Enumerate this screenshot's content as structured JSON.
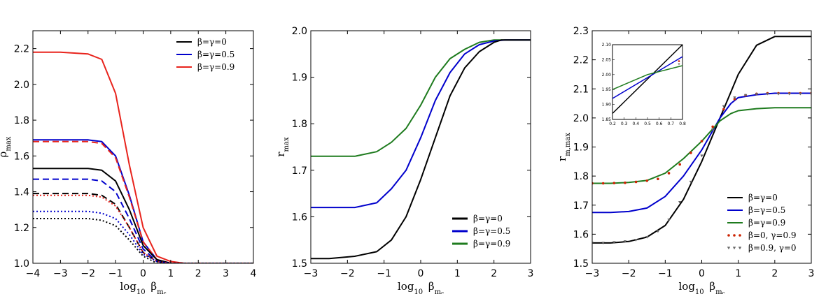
{
  "chart_data": [
    {
      "type": "line",
      "xlabel": "log₁₀ β_mc",
      "ylabel": "ρ_max",
      "xlim": [
        -4,
        4
      ],
      "ylim": [
        1.0,
        2.3
      ],
      "xticks": [
        -4,
        -3,
        -2,
        -1,
        0,
        1,
        2,
        3,
        4
      ],
      "yticks": [
        1.0,
        1.2,
        1.4,
        1.6,
        1.8,
        2.0,
        2.2
      ],
      "legend": {
        "placement": "top-right",
        "entries": [
          {
            "label": "β=γ=0",
            "color": "#000000"
          },
          {
            "label": "β=γ=0.5",
            "color": "#0000cc"
          },
          {
            "label": "β=γ=0.9",
            "color": "#e8231c"
          }
        ]
      },
      "series": [
        {
          "color": "#e8231c",
          "style": "solid",
          "x": [
            -4,
            -3,
            -2,
            -1.5,
            -1,
            -0.5,
            0,
            0.5,
            1,
            1.5,
            2,
            4
          ],
          "y": [
            2.18,
            2.18,
            2.17,
            2.14,
            1.95,
            1.55,
            1.2,
            1.04,
            1.01,
            1.0,
            1.0,
            1.0
          ]
        },
        {
          "color": "#0000cc",
          "style": "solid",
          "x": [
            -4,
            -3,
            -2,
            -1.5,
            -1,
            -0.5,
            0,
            0.5,
            1,
            1.5,
            4
          ],
          "y": [
            1.69,
            1.69,
            1.69,
            1.68,
            1.6,
            1.38,
            1.12,
            1.02,
            1.0,
            1.0,
            1.0
          ]
        },
        {
          "color": "#e8231c",
          "style": "dashed",
          "x": [
            -4,
            -3,
            -2,
            -1.5,
            -1,
            -0.5,
            0,
            0.5,
            1,
            1.5,
            4
          ],
          "y": [
            1.68,
            1.68,
            1.68,
            1.67,
            1.59,
            1.37,
            1.12,
            1.02,
            1.0,
            1.0,
            1.0
          ]
        },
        {
          "color": "#000000",
          "style": "solid",
          "x": [
            -4,
            -3,
            -2,
            -1.5,
            -1,
            -0.5,
            0,
            0.5,
            1,
            1.5,
            4
          ],
          "y": [
            1.53,
            1.53,
            1.53,
            1.52,
            1.46,
            1.3,
            1.1,
            1.02,
            1.0,
            1.0,
            1.0
          ]
        },
        {
          "color": "#0000cc",
          "style": "dashed",
          "x": [
            -4,
            -3,
            -2,
            -1.5,
            -1,
            -0.5,
            0,
            0.5,
            1,
            1.5,
            4
          ],
          "y": [
            1.47,
            1.47,
            1.47,
            1.46,
            1.4,
            1.25,
            1.08,
            1.01,
            1.0,
            1.0,
            1.0
          ]
        },
        {
          "color": "#000000",
          "style": "dashed",
          "x": [
            -4,
            -3,
            -2,
            -1.5,
            -1,
            -0.5,
            0,
            0.5,
            1,
            1.5,
            4
          ],
          "y": [
            1.39,
            1.39,
            1.39,
            1.38,
            1.33,
            1.2,
            1.06,
            1.01,
            1.0,
            1.0,
            1.0
          ]
        },
        {
          "color": "#e8231c",
          "style": "dotted",
          "x": [
            -4,
            -3,
            -2,
            -1.5,
            -1,
            -0.5,
            0,
            0.5,
            1,
            1.5,
            4
          ],
          "y": [
            1.38,
            1.38,
            1.38,
            1.37,
            1.32,
            1.2,
            1.06,
            1.01,
            1.0,
            1.0,
            1.0
          ]
        },
        {
          "color": "#0000cc",
          "style": "dotted",
          "x": [
            -4,
            -3,
            -2,
            -1.5,
            -1,
            -0.5,
            0,
            0.5,
            1,
            1.5,
            4
          ],
          "y": [
            1.29,
            1.29,
            1.29,
            1.28,
            1.25,
            1.16,
            1.05,
            1.01,
            1.0,
            1.0,
            1.0
          ]
        },
        {
          "color": "#000000",
          "style": "dotted",
          "x": [
            -4,
            -3,
            -2,
            -1.5,
            -1,
            -0.5,
            0,
            0.5,
            1,
            1.5,
            4
          ],
          "y": [
            1.25,
            1.25,
            1.25,
            1.24,
            1.21,
            1.13,
            1.04,
            1.0,
            1.0,
            1.0,
            1.0
          ]
        }
      ]
    },
    {
      "type": "line",
      "xlabel": "log₁₀ β_mc",
      "ylabel": "r_max",
      "xlim": [
        -3,
        3
      ],
      "ylim": [
        1.5,
        2.0
      ],
      "xticks": [
        -3,
        -2,
        -1,
        0,
        1,
        2,
        3
      ],
      "yticks": [
        1.5,
        1.6,
        1.7,
        1.8,
        1.9,
        2.0
      ],
      "legend": {
        "placement": "bottom-right",
        "entries": [
          {
            "label": "β=γ=0",
            "color": "#000000"
          },
          {
            "label": "β=γ=0.5",
            "color": "#0000cc"
          },
          {
            "label": "β=γ=0.9",
            "color": "#1e7b1e"
          }
        ]
      },
      "series": [
        {
          "color": "#1e7b1e",
          "x": [
            -3,
            -2.5,
            -1.8,
            -1.2,
            -0.8,
            -0.4,
            0,
            0.4,
            0.8,
            1.2,
            1.6,
            2,
            2.5,
            3
          ],
          "y": [
            1.73,
            1.73,
            1.73,
            1.74,
            1.76,
            1.79,
            1.84,
            1.9,
            1.94,
            1.96,
            1.975,
            1.98,
            1.98,
            1.98
          ]
        },
        {
          "color": "#0000cc",
          "x": [
            -3,
            -2.5,
            -1.8,
            -1.2,
            -0.8,
            -0.4,
            0,
            0.4,
            0.8,
            1.2,
            1.6,
            2,
            2.3,
            3
          ],
          "y": [
            1.62,
            1.62,
            1.62,
            1.63,
            1.66,
            1.7,
            1.77,
            1.85,
            1.91,
            1.95,
            1.97,
            1.978,
            1.98,
            1.98
          ]
        },
        {
          "color": "#000000",
          "x": [
            -3,
            -2.5,
            -1.8,
            -1.2,
            -0.8,
            -0.4,
            0,
            0.4,
            0.8,
            1.2,
            1.6,
            2,
            2.2,
            3
          ],
          "y": [
            1.51,
            1.51,
            1.515,
            1.525,
            1.55,
            1.6,
            1.68,
            1.77,
            1.86,
            1.92,
            1.955,
            1.975,
            1.98,
            1.98
          ]
        }
      ]
    },
    {
      "type": "line",
      "xlabel": "log₁₀ β_mc",
      "ylabel": "r_m,max",
      "xlim": [
        -3,
        3
      ],
      "ylim": [
        1.5,
        2.3
      ],
      "xticks": [
        -3,
        -2,
        -1,
        0,
        1,
        2,
        3
      ],
      "yticks": [
        1.5,
        1.6,
        1.7,
        1.8,
        1.9,
        2.0,
        2.1,
        2.2,
        2.3
      ],
      "legend": {
        "placement": "bottom-right",
        "entries": [
          {
            "label": "β=γ=0",
            "color": "#000000",
            "marker": "line"
          },
          {
            "label": "β=γ=0.5",
            "color": "#0000cc",
            "marker": "line"
          },
          {
            "label": "β=γ=0.9",
            "color": "#1e7b1e",
            "marker": "line"
          },
          {
            "label": "β=0, γ=0.9",
            "color": "#cc2200",
            "marker": "dots"
          },
          {
            "label": "β=0.9, γ=0",
            "color": "#666666",
            "marker": "triangles"
          }
        ]
      },
      "series": [
        {
          "color": "#000000",
          "x": [
            -3,
            -2.5,
            -2,
            -1.5,
            -1,
            -0.5,
            0,
            0.5,
            1,
            1.5,
            2,
            2.5,
            3
          ],
          "y": [
            1.57,
            1.57,
            1.575,
            1.59,
            1.63,
            1.72,
            1.85,
            2.0,
            2.15,
            2.25,
            2.28,
            2.28,
            2.28
          ]
        },
        {
          "color": "#0000cc",
          "x": [
            -3,
            -2.5,
            -2,
            -1.5,
            -1,
            -0.5,
            0,
            0.5,
            0.8,
            1,
            1.5,
            2,
            2.5,
            3
          ],
          "y": [
            1.675,
            1.675,
            1.678,
            1.69,
            1.73,
            1.8,
            1.89,
            2.0,
            2.05,
            2.07,
            2.08,
            2.085,
            2.085,
            2.085
          ]
        },
        {
          "color": "#1e7b1e",
          "x": [
            -3,
            -2.5,
            -2,
            -1.5,
            -1,
            -0.5,
            0,
            0.5,
            0.8,
            1,
            1.5,
            2,
            3
          ],
          "y": [
            1.775,
            1.775,
            1.778,
            1.785,
            1.81,
            1.86,
            1.92,
            1.99,
            2.015,
            2.025,
            2.032,
            2.035,
            2.035
          ]
        },
        {
          "color": "#cc2200",
          "marker": "dots",
          "x": [
            -3,
            -2.7,
            -2.4,
            -2.1,
            -1.8,
            -1.5,
            -1.2,
            -0.9,
            -0.6,
            -0.3,
            0,
            0.3,
            0.6,
            0.9,
            1.2,
            1.5,
            1.8,
            2.1,
            2.4,
            2.7,
            3
          ],
          "y": [
            1.775,
            1.775,
            1.776,
            1.777,
            1.78,
            1.784,
            1.79,
            1.81,
            1.84,
            1.88,
            1.92,
            1.97,
            2.03,
            2.065,
            2.078,
            2.083,
            2.085,
            2.085,
            2.085,
            2.085,
            2.085
          ]
        },
        {
          "color": "#666666",
          "marker": "triangles",
          "x": [
            -3,
            -2.7,
            -2.4,
            -2.1,
            -1.8,
            -1.5,
            -1.2,
            -0.9,
            -0.6,
            -0.3,
            0,
            0.3,
            0.6,
            0.9,
            1.2,
            1.5,
            1.8,
            2.1,
            2.4,
            2.7,
            3
          ],
          "y": [
            1.57,
            1.57,
            1.572,
            1.575,
            1.58,
            1.59,
            1.61,
            1.65,
            1.71,
            1.78,
            1.87,
            1.96,
            2.04,
            2.07,
            2.078,
            2.082,
            2.083,
            2.083,
            2.083,
            2.083,
            2.083
          ]
        }
      ],
      "inset": {
        "xlim": [
          0.2,
          0.8
        ],
        "ylim": [
          1.85,
          2.1
        ],
        "xticks": [
          0.2,
          0.3,
          0.4,
          0.5,
          0.6,
          0.7,
          0.8
        ],
        "yticks": [
          1.85,
          1.9,
          1.95,
          2.0,
          2.05,
          2.1
        ],
        "series": [
          {
            "color": "#000000",
            "x": [
              0.2,
              0.8
            ],
            "y": [
              1.87,
              2.1
            ]
          },
          {
            "color": "#0000cc",
            "x": [
              0.2,
              0.5,
              0.8
            ],
            "y": [
              1.92,
              1.99,
              2.06
            ]
          },
          {
            "color": "#1e7b1e",
            "x": [
              0.2,
              0.5,
              0.8
            ],
            "y": [
              1.95,
              2.0,
              2.03
            ]
          }
        ]
      }
    }
  ]
}
